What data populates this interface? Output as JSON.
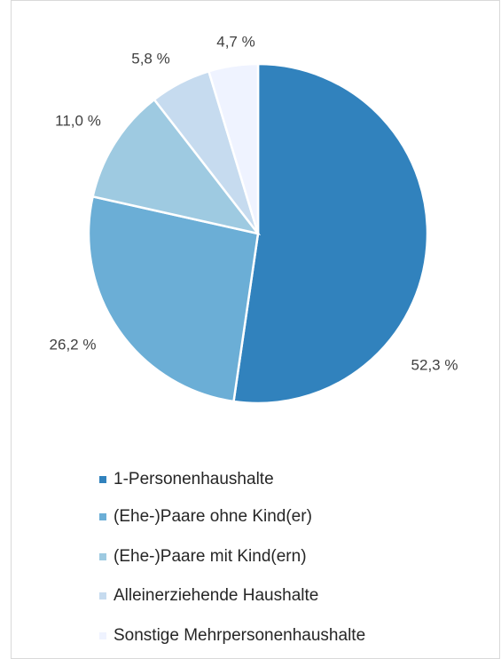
{
  "chart_data": {
    "type": "pie",
    "categories": [
      "1-Personenhaushalte",
      "(Ehe-)Paare ohne Kind(er)",
      "(Ehe-)Paare mit Kind(ern)",
      "Alleinerziehende Haushalte",
      "Sonstige Mehrpersonenhaushalte"
    ],
    "values": [
      52.3,
      26.2,
      11.0,
      5.8,
      4.7
    ],
    "value_labels": [
      "52,3 %",
      "26,2 %",
      "11,0 %",
      "5,8 %",
      "4,7 %"
    ],
    "colors": [
      "#3182bd",
      "#6baed6",
      "#9ecae1",
      "#c6dbef",
      "#eff3ff"
    ],
    "legend": "bottom"
  }
}
